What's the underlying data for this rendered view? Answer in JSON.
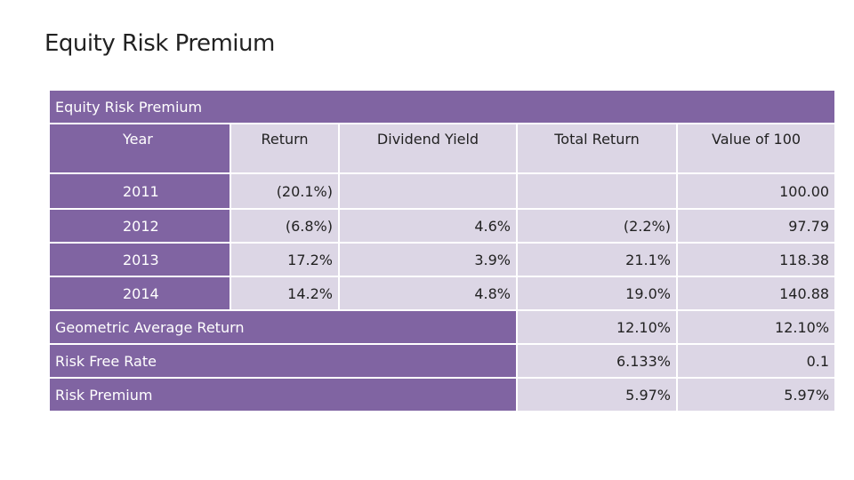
{
  "slide": {
    "title": "Equity Risk Premium"
  },
  "table": {
    "banner": "Equity Risk Premium",
    "headers": [
      "Year",
      "Return",
      "Dividend Yield",
      "Total Return",
      "Value of 100"
    ],
    "rows": [
      {
        "year": "2011",
        "return": "(20.1%)",
        "dividend_yield": "",
        "total_return": "",
        "value": "100.00"
      },
      {
        "year": "2012",
        "return": "(6.8%)",
        "dividend_yield": "4.6%",
        "total_return": "(2.2%)",
        "value": "97.79"
      },
      {
        "year": "2013",
        "return": "17.2%",
        "dividend_yield": "3.9%",
        "total_return": "21.1%",
        "value": "118.38"
      },
      {
        "year": "2014",
        "return": "14.2%",
        "dividend_yield": "4.8%",
        "total_return": "19.0%",
        "value": "140.88"
      }
    ],
    "summary": [
      {
        "label": "Geometric Average Return",
        "total_return": "12.10%",
        "value": "12.10%"
      },
      {
        "label": "Risk Free Rate",
        "total_return": "6.133%",
        "value": "0.1"
      },
      {
        "label": "Risk Premium",
        "total_return": "5.97%",
        "value": "5.97%"
      }
    ]
  },
  "colors": {
    "header_purple": "#8064a2",
    "cell_light": "#dcd6e5"
  }
}
